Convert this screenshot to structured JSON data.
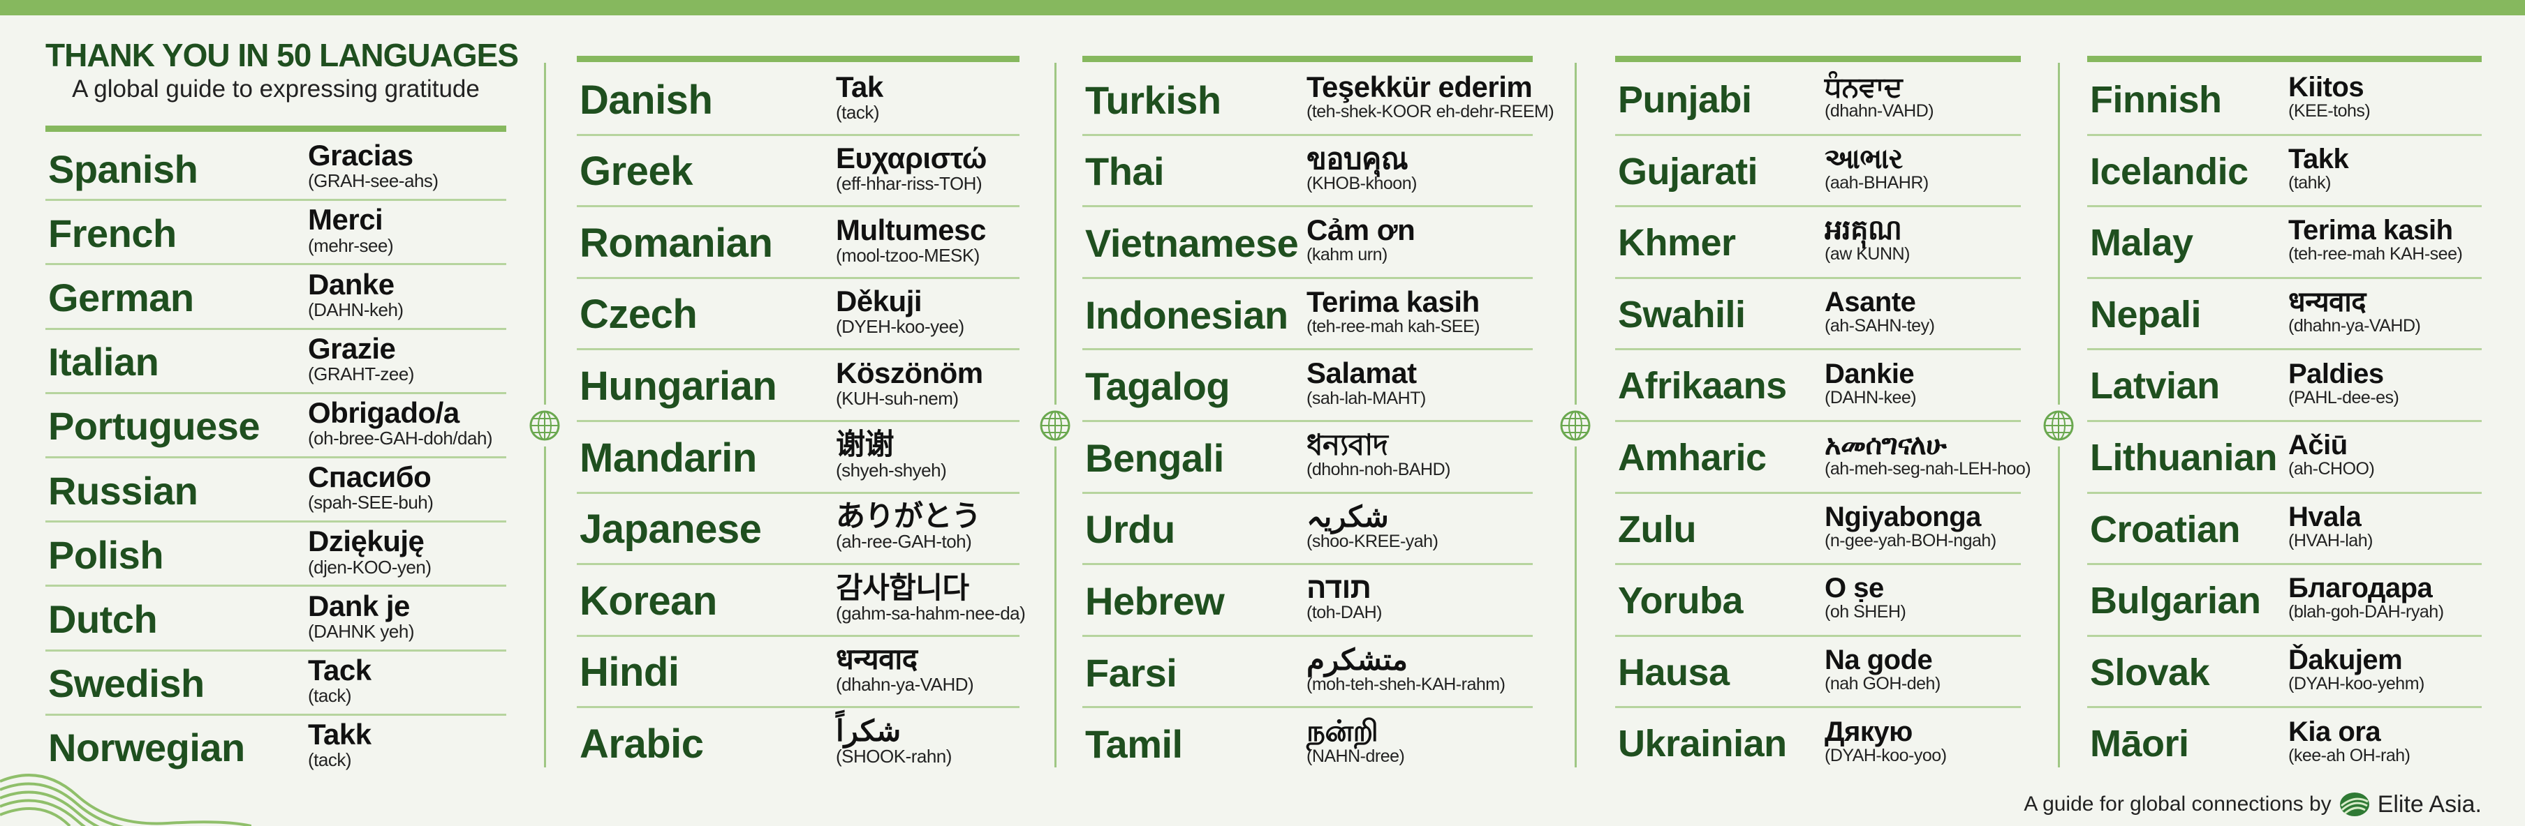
{
  "header": {
    "title": "THANK YOU IN 50 LANGUAGES",
    "subtitle": "A global guide to expressing gratitude"
  },
  "colors": {
    "accent": "#86b85e",
    "language_text": "#1f4f1f",
    "divider": "#b6d49e"
  },
  "columns": [
    {
      "entries": [
        {
          "language": "Spanish",
          "word": "Gracias",
          "pronunciation": "(GRAH-see-ahs)"
        },
        {
          "language": "French",
          "word": "Merci",
          "pronunciation": "(mehr-see)"
        },
        {
          "language": "German",
          "word": "Danke",
          "pronunciation": "(DAHN-keh)"
        },
        {
          "language": "Italian",
          "word": "Grazie",
          "pronunciation": "(GRAHT-zee)"
        },
        {
          "language": "Portuguese",
          "word": "Obrigado/a",
          "pronunciation": "(oh-bree-GAH-doh/dah)"
        },
        {
          "language": "Russian",
          "word": "Спасибо",
          "pronunciation": "(spah-SEE-buh)"
        },
        {
          "language": "Polish",
          "word": "Dziękuję",
          "pronunciation": "(djen-KOO-yen)"
        },
        {
          "language": "Dutch",
          "word": "Dank je",
          "pronunciation": "(DAHNK yeh)"
        },
        {
          "language": "Swedish",
          "word": "Tack",
          "pronunciation": "(tack)"
        },
        {
          "language": "Norwegian",
          "word": "Takk",
          "pronunciation": "(tack)"
        }
      ]
    },
    {
      "entries": [
        {
          "language": "Danish",
          "word": "Tak",
          "pronunciation": "(tack)"
        },
        {
          "language": "Greek",
          "word": "Ευχαριστώ",
          "pronunciation": "(eff-hhar-riss-TOH)"
        },
        {
          "language": "Romanian",
          "word": "Multumesc",
          "pronunciation": "(mool-tzoo-MESK)"
        },
        {
          "language": "Czech",
          "word": "Děkuji",
          "pronunciation": "(DYEH-koo-yee)"
        },
        {
          "language": "Hungarian",
          "word": "Köszönöm",
          "pronunciation": "(KUH-suh-nem)"
        },
        {
          "language": "Mandarin",
          "word": "谢谢",
          "pronunciation": "(shyeh-shyeh)"
        },
        {
          "language": "Japanese",
          "word": "ありがとう",
          "pronunciation": "(ah-ree-GAH-toh)"
        },
        {
          "language": "Korean",
          "word": "감사합니다",
          "pronunciation": "(gahm-sa-hahm-nee-da)"
        },
        {
          "language": "Hindi",
          "word": "धन्यवाद",
          "pronunciation": "(dhahn-ya-VAHD)"
        },
        {
          "language": "Arabic",
          "word": "شكراً",
          "pronunciation": "(SHOOK-rahn)"
        }
      ]
    },
    {
      "entries": [
        {
          "language": "Turkish",
          "word": "Teşekkür ederim",
          "pronunciation": "(teh-shek-KOOR eh-dehr-REEM)"
        },
        {
          "language": "Thai",
          "word": "ขอบคุณ",
          "pronunciation": "(KHOB-khoon)"
        },
        {
          "language": "Vietnamese",
          "word": "Cảm ơn",
          "pronunciation": "(kahm urn)"
        },
        {
          "language": "Indonesian",
          "word": "Terima kasih",
          "pronunciation": "(teh-ree-mah kah-SEE)"
        },
        {
          "language": "Tagalog",
          "word": "Salamat",
          "pronunciation": "(sah-lah-MAHT)"
        },
        {
          "language": "Bengali",
          "word": "ধন্যবাদ",
          "pronunciation": "(dhohn-noh-BAHD)"
        },
        {
          "language": "Urdu",
          "word": "شکریہ",
          "pronunciation": "(shoo-KREE-yah)"
        },
        {
          "language": "Hebrew",
          "word": "תודה",
          "pronunciation": "(toh-DAH)"
        },
        {
          "language": "Farsi",
          "word": "متشکرم",
          "pronunciation": "(moh-teh-sheh-KAH-rahm)"
        },
        {
          "language": "Tamil",
          "word": "நன்றி",
          "pronunciation": "(NAHN-dree)"
        }
      ]
    },
    {
      "entries": [
        {
          "language": "Punjabi",
          "word": "ਧੰਨਵਾਦ",
          "pronunciation": "(dhahn-VAHD)"
        },
        {
          "language": "Gujarati",
          "word": "આભાર",
          "pronunciation": "(aah-BHAHR)"
        },
        {
          "language": "Khmer",
          "word": "អរគុណ",
          "pronunciation": "(aw KUNN)"
        },
        {
          "language": "Swahili",
          "word": "Asante",
          "pronunciation": "(ah-SAHN-tey)"
        },
        {
          "language": "Afrikaans",
          "word": "Dankie",
          "pronunciation": "(DAHN-kee)"
        },
        {
          "language": "Amharic",
          "word": "አመሰግናለሁ",
          "pronunciation": "(ah-meh-seg-nah-LEH-hoo)"
        },
        {
          "language": "Zulu",
          "word": "Ngiyabonga",
          "pronunciation": "(n-gee-yah-BOH-ngah)"
        },
        {
          "language": "Yoruba",
          "word": "O ṣe",
          "pronunciation": "(oh SHEH)"
        },
        {
          "language": "Hausa",
          "word": "Na gode",
          "pronunciation": "(nah GOH-deh)"
        },
        {
          "language": "Ukrainian",
          "word": "Дякую",
          "pronunciation": "(DYAH-koo-yoo)"
        }
      ]
    },
    {
      "entries": [
        {
          "language": "Finnish",
          "word": "Kiitos",
          "pronunciation": "(KEE-tohs)"
        },
        {
          "language": "Icelandic",
          "word": "Takk",
          "pronunciation": "(tahk)"
        },
        {
          "language": "Malay",
          "word": "Terima kasih",
          "pronunciation": "(teh-ree-mah KAH-see)"
        },
        {
          "language": "Nepali",
          "word": "धन्यवाद",
          "pronunciation": "(dhahn-ya-VAHD)"
        },
        {
          "language": "Latvian",
          "word": "Paldies",
          "pronunciation": "(PAHL-dee-es)"
        },
        {
          "language": "Lithuanian",
          "word": "Ačiū",
          "pronunciation": "(ah-CHOO)"
        },
        {
          "language": "Croatian",
          "word": "Hvala",
          "pronunciation": "(HVAH-lah)"
        },
        {
          "language": "Bulgarian",
          "word": "Благодара",
          "pronunciation": "(blah-goh-DAH-ryah)"
        },
        {
          "language": "Slovak",
          "word": "Ďakujem",
          "pronunciation": "(DYAH-koo-yehm)"
        },
        {
          "language": "Māori",
          "word": "Kia ora",
          "pronunciation": "(kee-ah OH-rah)"
        }
      ]
    }
  ],
  "footer": {
    "text": "A guide for global connections by",
    "brand": "Elite Asia."
  },
  "icons": {
    "divider": "globe-icon",
    "logo": "elite-asia-logo",
    "decoration": "wave-lines"
  }
}
